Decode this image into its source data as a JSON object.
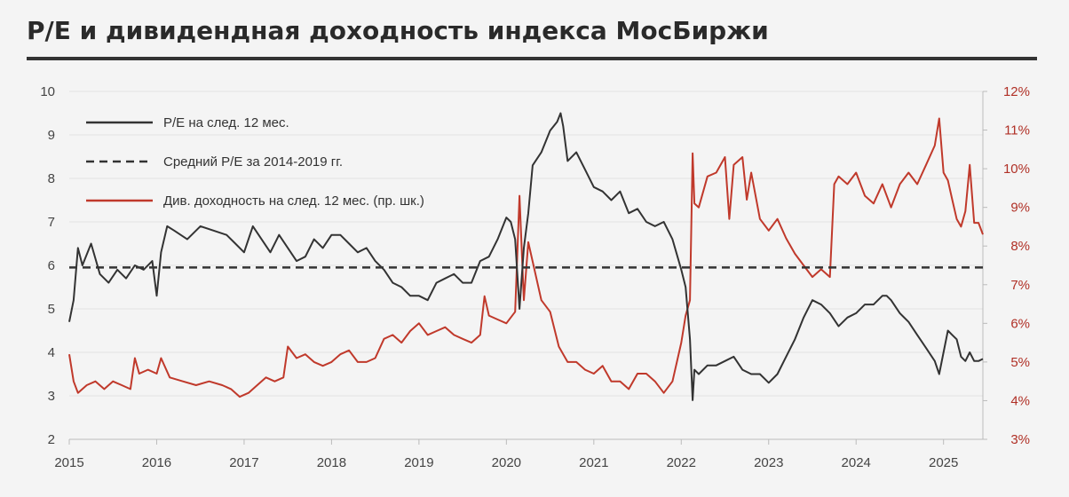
{
  "title": "P/E и дивидендная доходность индекса МосБиржи",
  "colors": {
    "pe": "#333333",
    "avg": "#333333",
    "div": "#c0392b",
    "grid": "#dddddd",
    "right_axis": "#b03026"
  },
  "chart_data": {
    "type": "line",
    "title": "P/E и дивидендная доходность индекса МосБиржи",
    "xlabel": "",
    "ylabel": "",
    "xlim": [
      2015.0,
      2025.45
    ],
    "ylim": [
      2,
      10
    ],
    "y2lim": [
      3,
      12
    ],
    "x_ticks": [
      "2015",
      "2016",
      "2017",
      "2018",
      "2019",
      "2020",
      "2021",
      "2022",
      "2023",
      "2024",
      "2025"
    ],
    "y_ticks": [
      "2",
      "3",
      "4",
      "5",
      "6",
      "7",
      "8",
      "9",
      "10"
    ],
    "y2_ticks": [
      "3%",
      "4%",
      "5%",
      "6%",
      "7%",
      "8%",
      "9%",
      "10%",
      "11%",
      "12%"
    ],
    "legend_position": "top-left",
    "series": [
      {
        "name": "P/E на след. 12 мес.",
        "axis": "left",
        "style": "solid",
        "x": [
          2015.0,
          2015.05,
          2015.1,
          2015.15,
          2015.25,
          2015.35,
          2015.45,
          2015.55,
          2015.65,
          2015.75,
          2015.85,
          2015.95,
          2016.0,
          2016.05,
          2016.12,
          2016.2,
          2016.35,
          2016.5,
          2016.65,
          2016.8,
          2016.9,
          2017.0,
          2017.1,
          2017.2,
          2017.3,
          2017.4,
          2017.5,
          2017.6,
          2017.7,
          2017.8,
          2017.9,
          2018.0,
          2018.1,
          2018.2,
          2018.3,
          2018.4,
          2018.5,
          2018.6,
          2018.7,
          2018.8,
          2018.9,
          2019.0,
          2019.1,
          2019.2,
          2019.3,
          2019.4,
          2019.5,
          2019.6,
          2019.7,
          2019.8,
          2019.9,
          2020.0,
          2020.05,
          2020.1,
          2020.15,
          2020.2,
          2020.25,
          2020.3,
          2020.4,
          2020.5,
          2020.58,
          2020.62,
          2020.65,
          2020.7,
          2020.8,
          2020.9,
          2021.0,
          2021.1,
          2021.2,
          2021.3,
          2021.4,
          2021.5,
          2021.6,
          2021.7,
          2021.8,
          2021.9,
          2022.0,
          2022.05,
          2022.1,
          2022.13,
          2022.15,
          2022.2,
          2022.3,
          2022.4,
          2022.5,
          2022.6,
          2022.7,
          2022.8,
          2022.9,
          2023.0,
          2023.1,
          2023.2,
          2023.3,
          2023.4,
          2023.5,
          2023.6,
          2023.7,
          2023.8,
          2023.9,
          2024.0,
          2024.1,
          2024.2,
          2024.3,
          2024.35,
          2024.4,
          2024.5,
          2024.6,
          2024.7,
          2024.8,
          2024.9,
          2024.95,
          2025.0,
          2025.05,
          2025.1,
          2025.15,
          2025.2,
          2025.25,
          2025.3,
          2025.35,
          2025.4,
          2025.45
        ],
        "y": [
          4.7,
          5.2,
          6.4,
          6.0,
          6.5,
          5.8,
          5.6,
          5.9,
          5.7,
          6.0,
          5.9,
          6.1,
          5.3,
          6.3,
          6.9,
          6.8,
          6.6,
          6.9,
          6.8,
          6.7,
          6.5,
          6.3,
          6.9,
          6.6,
          6.3,
          6.7,
          6.4,
          6.1,
          6.2,
          6.6,
          6.4,
          6.7,
          6.7,
          6.5,
          6.3,
          6.4,
          6.1,
          5.9,
          5.6,
          5.5,
          5.3,
          5.3,
          5.2,
          5.6,
          5.7,
          5.8,
          5.6,
          5.6,
          6.1,
          6.2,
          6.6,
          7.1,
          7.0,
          6.6,
          5.0,
          6.4,
          7.2,
          8.3,
          8.6,
          9.1,
          9.3,
          9.5,
          9.2,
          8.4,
          8.6,
          8.2,
          7.8,
          7.7,
          7.5,
          7.7,
          7.2,
          7.3,
          7.0,
          6.9,
          7.0,
          6.6,
          5.9,
          5.5,
          4.3,
          2.9,
          3.6,
          3.5,
          3.7,
          3.7,
          3.8,
          3.9,
          3.6,
          3.5,
          3.5,
          3.3,
          3.5,
          3.9,
          4.3,
          4.8,
          5.2,
          5.1,
          4.9,
          4.6,
          4.8,
          4.9,
          5.1,
          5.1,
          5.3,
          5.3,
          5.2,
          4.9,
          4.7,
          4.4,
          4.1,
          3.8,
          3.5,
          4.0,
          4.5,
          4.4,
          4.3,
          3.9,
          3.8,
          4.0,
          3.8,
          3.8,
          3.85
        ]
      },
      {
        "name": "Средний P/E за 2014-2019 гг.",
        "axis": "left",
        "style": "dashed",
        "x": [
          2015.0,
          2025.45
        ],
        "y": [
          5.95,
          5.95
        ]
      },
      {
        "name": "Див. доходность на след. 12 мес. (пр. шк.)",
        "axis": "right",
        "style": "solid",
        "x": [
          2015.0,
          2015.05,
          2015.1,
          2015.2,
          2015.3,
          2015.4,
          2015.5,
          2015.6,
          2015.7,
          2015.75,
          2015.8,
          2015.9,
          2016.0,
          2016.05,
          2016.15,
          2016.3,
          2016.45,
          2016.6,
          2016.75,
          2016.85,
          2016.95,
          2017.05,
          2017.15,
          2017.25,
          2017.35,
          2017.45,
          2017.5,
          2017.6,
          2017.7,
          2017.8,
          2017.9,
          2018.0,
          2018.1,
          2018.2,
          2018.3,
          2018.4,
          2018.5,
          2018.6,
          2018.7,
          2018.8,
          2018.9,
          2019.0,
          2019.1,
          2019.2,
          2019.3,
          2019.4,
          2019.5,
          2019.6,
          2019.7,
          2019.75,
          2019.8,
          2019.9,
          2020.0,
          2020.1,
          2020.15,
          2020.2,
          2020.25,
          2020.3,
          2020.4,
          2020.5,
          2020.6,
          2020.7,
          2020.8,
          2020.9,
          2021.0,
          2021.1,
          2021.2,
          2021.3,
          2021.4,
          2021.5,
          2021.6,
          2021.7,
          2021.8,
          2021.9,
          2022.0,
          2022.05,
          2022.1,
          2022.13,
          2022.15,
          2022.2,
          2022.3,
          2022.4,
          2022.5,
          2022.55,
          2022.6,
          2022.7,
          2022.75,
          2022.8,
          2022.9,
          2023.0,
          2023.1,
          2023.2,
          2023.3,
          2023.4,
          2023.5,
          2023.6,
          2023.7,
          2023.75,
          2023.8,
          2023.9,
          2024.0,
          2024.1,
          2024.2,
          2024.3,
          2024.4,
          2024.5,
          2024.6,
          2024.7,
          2024.8,
          2024.9,
          2024.95,
          2025.0,
          2025.05,
          2025.1,
          2025.15,
          2025.2,
          2025.25,
          2025.3,
          2025.35,
          2025.4,
          2025.45
        ],
        "y": [
          5.2,
          4.5,
          4.2,
          4.4,
          4.5,
          4.3,
          4.5,
          4.4,
          4.3,
          5.1,
          4.7,
          4.8,
          4.7,
          5.1,
          4.6,
          4.5,
          4.4,
          4.5,
          4.4,
          4.3,
          4.1,
          4.2,
          4.4,
          4.6,
          4.5,
          4.6,
          5.4,
          5.1,
          5.2,
          5.0,
          4.9,
          5.0,
          5.2,
          5.3,
          5.0,
          5.0,
          5.1,
          5.6,
          5.7,
          5.5,
          5.8,
          6.0,
          5.7,
          5.8,
          5.9,
          5.7,
          5.6,
          5.5,
          5.7,
          6.7,
          6.2,
          6.1,
          6.0,
          6.3,
          9.3,
          6.6,
          8.1,
          7.6,
          6.6,
          6.3,
          5.4,
          5.0,
          5.0,
          4.8,
          4.7,
          4.9,
          4.5,
          4.5,
          4.3,
          4.7,
          4.7,
          4.5,
          4.2,
          4.5,
          5.5,
          6.2,
          6.6,
          10.4,
          9.1,
          9.0,
          9.8,
          9.9,
          10.3,
          8.7,
          10.1,
          10.3,
          9.2,
          9.9,
          8.7,
          8.4,
          8.7,
          8.2,
          7.8,
          7.5,
          7.2,
          7.4,
          7.2,
          9.6,
          9.8,
          9.6,
          9.9,
          9.3,
          9.1,
          9.6,
          9.0,
          9.6,
          9.9,
          9.6,
          10.1,
          10.6,
          11.3,
          9.9,
          9.7,
          9.2,
          8.7,
          8.5,
          8.9,
          10.1,
          8.6,
          8.6,
          8.3
        ]
      }
    ]
  }
}
